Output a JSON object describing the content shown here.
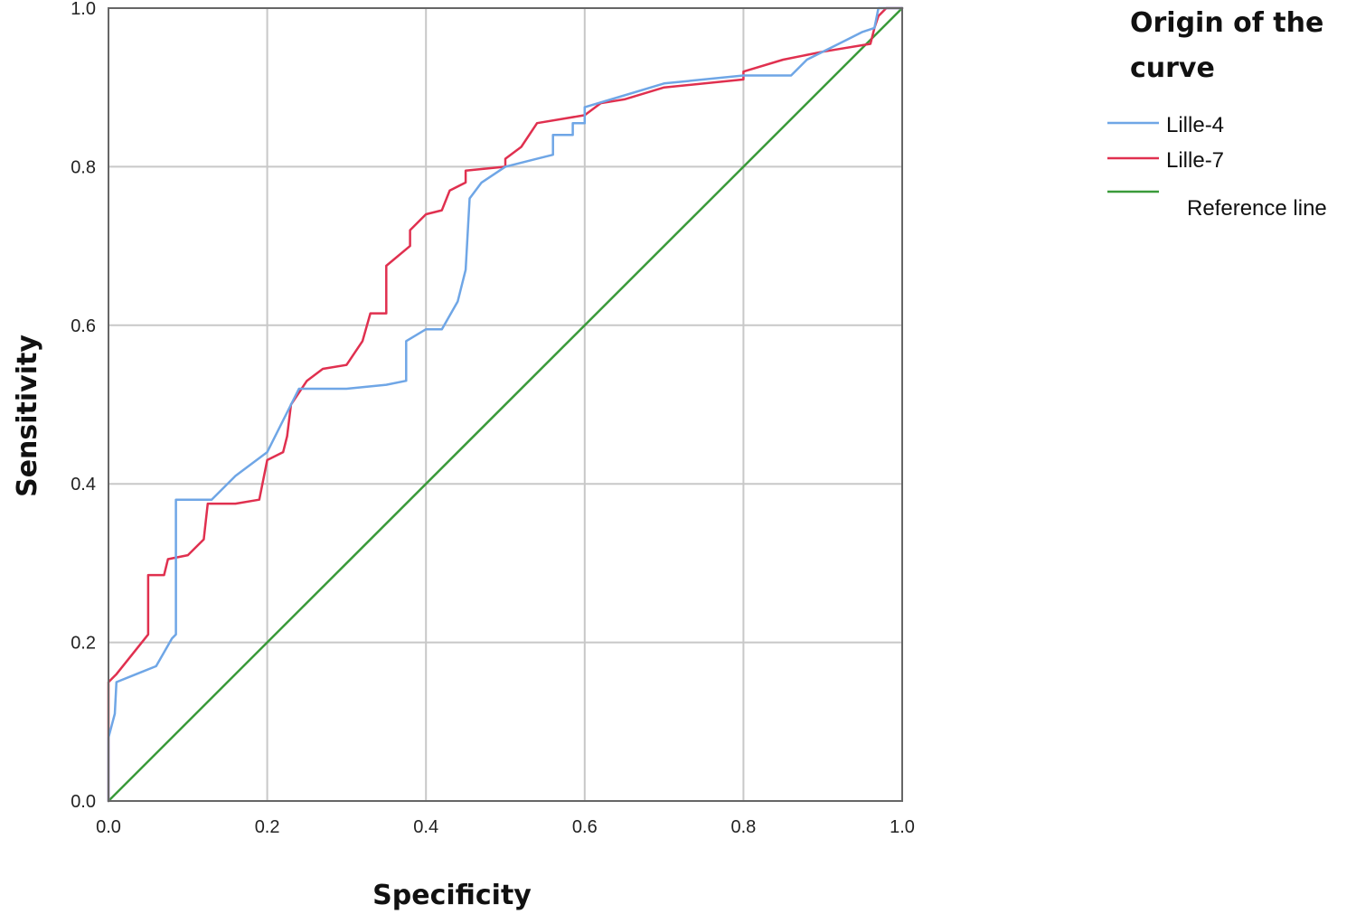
{
  "chart_data": {
    "type": "line",
    "title": "",
    "xlabel": "Specificity",
    "ylabel": "Sensitivity",
    "xlim": [
      0,
      1
    ],
    "ylim": [
      0,
      1
    ],
    "x_ticks": [
      "0.0",
      "0.2",
      "0.4",
      "0.6",
      "0.8",
      "1.0"
    ],
    "y_ticks": [
      "0.0",
      "0.2",
      "0.4",
      "0.6",
      "0.8",
      "1.0"
    ],
    "grid": true,
    "legend": {
      "title_lines": [
        "Origin of the",
        "curve"
      ],
      "placement": "right"
    },
    "series": [
      {
        "name": "Lille-4",
        "color": "#6fa6e6",
        "points": [
          [
            0.0,
            0.0
          ],
          [
            0.0,
            0.08
          ],
          [
            0.008,
            0.11
          ],
          [
            0.01,
            0.15
          ],
          [
            0.035,
            0.16
          ],
          [
            0.06,
            0.17
          ],
          [
            0.08,
            0.205
          ],
          [
            0.085,
            0.21
          ],
          [
            0.085,
            0.38
          ],
          [
            0.13,
            0.38
          ],
          [
            0.16,
            0.41
          ],
          [
            0.2,
            0.44
          ],
          [
            0.24,
            0.52
          ],
          [
            0.3,
            0.52
          ],
          [
            0.35,
            0.525
          ],
          [
            0.375,
            0.53
          ],
          [
            0.375,
            0.58
          ],
          [
            0.4,
            0.595
          ],
          [
            0.42,
            0.595
          ],
          [
            0.44,
            0.63
          ],
          [
            0.45,
            0.67
          ],
          [
            0.455,
            0.76
          ],
          [
            0.47,
            0.78
          ],
          [
            0.5,
            0.8
          ],
          [
            0.54,
            0.81
          ],
          [
            0.56,
            0.815
          ],
          [
            0.56,
            0.84
          ],
          [
            0.585,
            0.84
          ],
          [
            0.585,
            0.855
          ],
          [
            0.6,
            0.855
          ],
          [
            0.6,
            0.875
          ],
          [
            0.65,
            0.89
          ],
          [
            0.7,
            0.905
          ],
          [
            0.8,
            0.915
          ],
          [
            0.86,
            0.915
          ],
          [
            0.88,
            0.935
          ],
          [
            0.91,
            0.95
          ],
          [
            0.93,
            0.96
          ],
          [
            0.95,
            0.97
          ],
          [
            0.965,
            0.975
          ],
          [
            0.97,
            1.0
          ],
          [
            1.0,
            1.0
          ]
        ]
      },
      {
        "name": "Lille-7",
        "color": "#e0304f",
        "points": [
          [
            0.0,
            0.0
          ],
          [
            0.0,
            0.15
          ],
          [
            0.01,
            0.16
          ],
          [
            0.05,
            0.21
          ],
          [
            0.05,
            0.285
          ],
          [
            0.07,
            0.285
          ],
          [
            0.075,
            0.305
          ],
          [
            0.1,
            0.31
          ],
          [
            0.12,
            0.33
          ],
          [
            0.125,
            0.375
          ],
          [
            0.16,
            0.375
          ],
          [
            0.19,
            0.38
          ],
          [
            0.2,
            0.43
          ],
          [
            0.22,
            0.44
          ],
          [
            0.225,
            0.46
          ],
          [
            0.23,
            0.5
          ],
          [
            0.25,
            0.53
          ],
          [
            0.27,
            0.545
          ],
          [
            0.3,
            0.55
          ],
          [
            0.32,
            0.58
          ],
          [
            0.33,
            0.615
          ],
          [
            0.35,
            0.615
          ],
          [
            0.35,
            0.675
          ],
          [
            0.38,
            0.7
          ],
          [
            0.38,
            0.72
          ],
          [
            0.4,
            0.74
          ],
          [
            0.42,
            0.745
          ],
          [
            0.43,
            0.77
          ],
          [
            0.45,
            0.78
          ],
          [
            0.45,
            0.795
          ],
          [
            0.5,
            0.8
          ],
          [
            0.5,
            0.81
          ],
          [
            0.52,
            0.825
          ],
          [
            0.54,
            0.855
          ],
          [
            0.6,
            0.865
          ],
          [
            0.62,
            0.88
          ],
          [
            0.65,
            0.885
          ],
          [
            0.7,
            0.9
          ],
          [
            0.8,
            0.91
          ],
          [
            0.8,
            0.92
          ],
          [
            0.85,
            0.935
          ],
          [
            0.9,
            0.945
          ],
          [
            0.96,
            0.955
          ],
          [
            0.965,
            0.975
          ],
          [
            0.97,
            0.99
          ],
          [
            0.98,
            1.0
          ],
          [
            1.0,
            1.0
          ]
        ]
      },
      {
        "name": "Reference line",
        "color": "#3a9a3a",
        "points": [
          [
            0.0,
            0.0
          ],
          [
            1.0,
            1.0
          ]
        ]
      }
    ]
  }
}
